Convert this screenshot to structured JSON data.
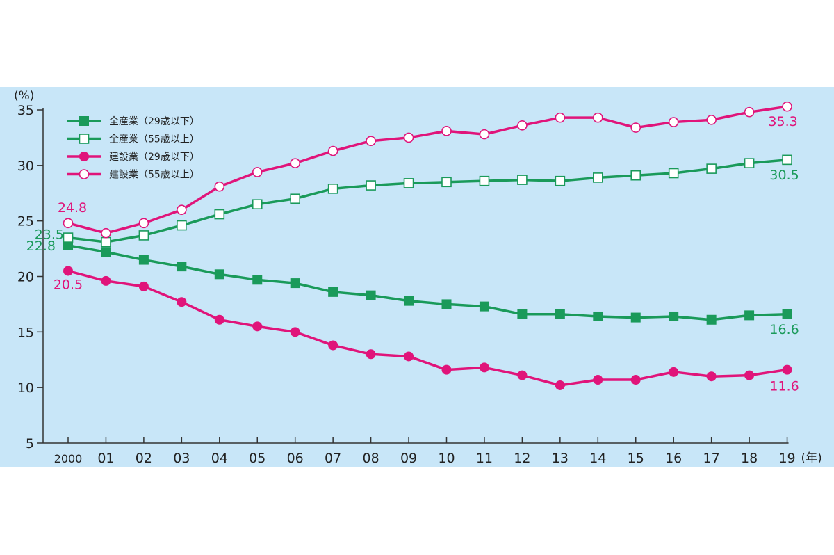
{
  "chart_data": {
    "type": "line",
    "y_unit": "(%)",
    "x_unit": "(年)",
    "ylim": [
      5,
      35
    ],
    "yticks": [
      "5",
      "10",
      "15",
      "20",
      "25",
      "30",
      "35"
    ],
    "categories": [
      "2000",
      "01",
      "02",
      "03",
      "04",
      "05",
      "06",
      "07",
      "08",
      "09",
      "10",
      "11",
      "12",
      "13",
      "14",
      "15",
      "16",
      "17",
      "18",
      "19"
    ],
    "legend_position": "top-left",
    "series": [
      {
        "name": "全産業（29歳以下）",
        "color": "#1a9a5a",
        "marker": "filled-square",
        "values": [
          22.8,
          22.2,
          21.5,
          20.9,
          20.2,
          19.7,
          19.4,
          18.6,
          18.3,
          17.8,
          17.5,
          17.3,
          16.6,
          16.6,
          16.4,
          16.3,
          16.4,
          16.1,
          16.5,
          16.6
        ]
      },
      {
        "name": "全産業（55歳以上）",
        "color": "#1a9a5a",
        "marker": "open-square",
        "values": [
          23.5,
          23.1,
          23.7,
          24.6,
          25.6,
          26.5,
          27.0,
          27.9,
          28.2,
          28.4,
          28.5,
          28.6,
          28.7,
          28.6,
          28.9,
          29.1,
          29.3,
          29.7,
          30.2,
          30.5
        ]
      },
      {
        "name": "建設業（29歳以下）",
        "color": "#e0147a",
        "marker": "filled-circle",
        "values": [
          20.5,
          19.6,
          19.1,
          17.7,
          16.1,
          15.5,
          15.0,
          13.8,
          13.0,
          12.8,
          11.6,
          11.8,
          11.1,
          10.2,
          10.7,
          10.7,
          11.4,
          11.0,
          11.1,
          11.6
        ]
      },
      {
        "name": "建設業（55歳以上）",
        "color": "#e0147a",
        "marker": "open-circle",
        "values": [
          24.8,
          23.9,
          24.8,
          26.0,
          28.1,
          29.4,
          30.2,
          31.3,
          32.2,
          32.5,
          33.1,
          32.8,
          33.6,
          34.3,
          34.3,
          33.4,
          33.9,
          34.1,
          34.8,
          35.3
        ]
      }
    ],
    "annotations": [
      {
        "series": 0,
        "index": 0,
        "text": "22.8"
      },
      {
        "series": 0,
        "index": 19,
        "text": "16.6"
      },
      {
        "series": 1,
        "index": 0,
        "text": "23.5"
      },
      {
        "series": 1,
        "index": 19,
        "text": "30.5"
      },
      {
        "series": 2,
        "index": 0,
        "text": "20.5"
      },
      {
        "series": 2,
        "index": 19,
        "text": "11.6"
      },
      {
        "series": 3,
        "index": 0,
        "text": "24.8"
      },
      {
        "series": 3,
        "index": 19,
        "text": "35.3"
      }
    ]
  }
}
